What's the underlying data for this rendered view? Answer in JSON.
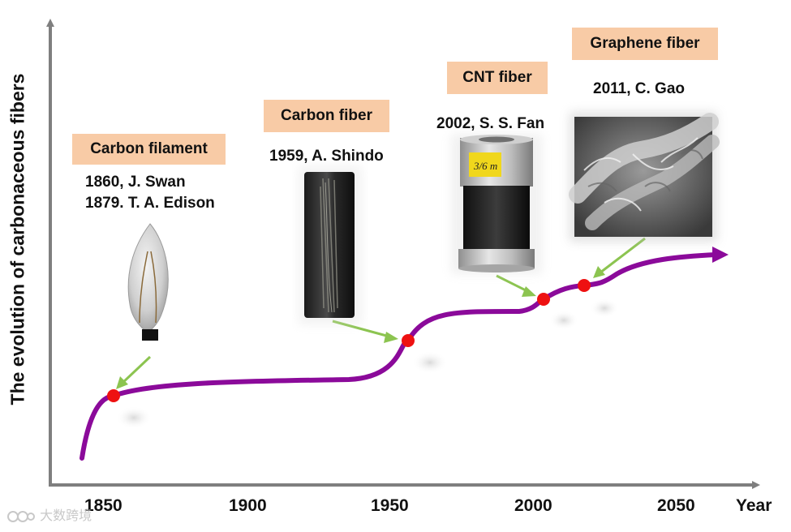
{
  "axes": {
    "y_label": "The evolution of carbonaceous fibers",
    "x_title": "Year",
    "ticks": [
      "1850",
      "1900",
      "1950",
      "2000",
      "2050"
    ]
  },
  "milestones": [
    {
      "tag": "Carbon filament",
      "lines": [
        "1860, J. Swan",
        "1879. T. A. Edison"
      ],
      "image": "light-bulb-icon"
    },
    {
      "tag": "Carbon fiber",
      "lines": [
        "1959, A. Shindo"
      ],
      "image": "carbon-fiber-spool"
    },
    {
      "tag": "CNT fiber",
      "lines": [
        "2002, S. S. Fan"
      ],
      "image": "cnt-fiber-bobbin"
    },
    {
      "tag": "Graphene fiber",
      "lines": [
        "2011, C. Gao"
      ],
      "image": "graphene-fiber-micrograph"
    }
  ],
  "spool_label": "3/6 m",
  "watermark": "大数跨境",
  "colors": {
    "curve": "#8b0a9a",
    "milestone_dot": "#ee1111",
    "pointer_arrow": "#8cc450",
    "tag_fill": "#f8cba6",
    "axis": "#7f7f7f"
  }
}
